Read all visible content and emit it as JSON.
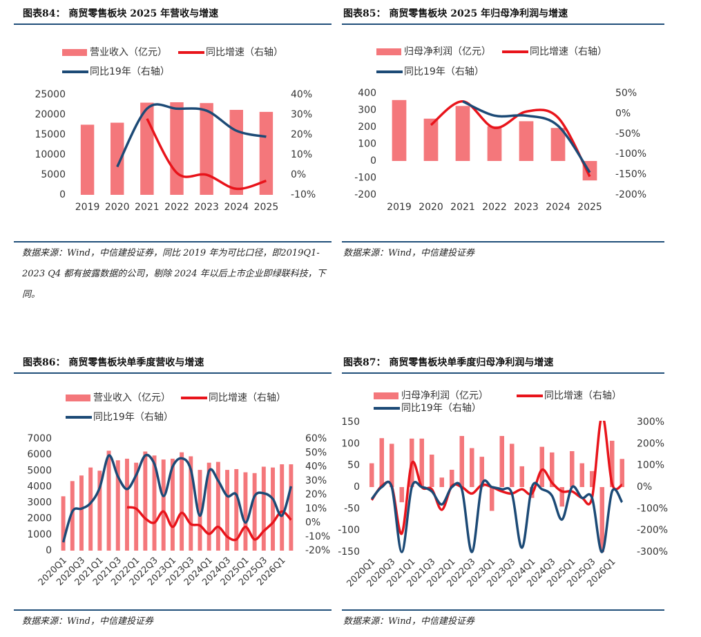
{
  "chart_data": [
    {
      "type": "bar-line",
      "title": "图表84：  商贸零售板块 2025 年营收与增速",
      "note": "数据来源：Wind，中信建投证券，同比 2019 年为可比口径，即2019Q1-2023 Q4 都有披露数据的公司，剔除 2024 年以后上市企业即绿联科技，下同。",
      "categories": [
        "2019",
        "2020",
        "2021",
        "2022",
        "2023",
        "2024",
        "2025"
      ],
      "series": [
        {
          "name": "营业收入（亿元）",
          "type": "bar",
          "color": "#f4777b",
          "values": [
            17500,
            18000,
            23000,
            23100,
            22900,
            21200,
            20700
          ]
        },
        {
          "name": "同比增速（右轴）",
          "type": "line",
          "axis": "y2",
          "color": "#e8141b",
          "values": [
            null,
            null,
            28,
            1,
            0,
            -7,
            -3
          ]
        },
        {
          "name": "同比19年（右轴）",
          "type": "line",
          "axis": "y2",
          "color": "#1c4a76",
          "values": [
            null,
            4,
            33,
            33,
            32,
            22,
            19
          ]
        }
      ],
      "ylim": [
        0,
        25000
      ],
      "yticks": [
        0,
        5000,
        10000,
        15000,
        20000,
        25000
      ],
      "y2lim": [
        -10,
        40
      ],
      "y2ticks": [
        {
          "value": -10,
          "label": "-10%"
        },
        {
          "value": 0,
          "label": "0%"
        },
        {
          "value": 10,
          "label": "10%"
        },
        {
          "value": 20,
          "label": "20%"
        },
        {
          "value": 30,
          "label": "30%"
        },
        {
          "value": 40,
          "label": "40%"
        }
      ]
    },
    {
      "type": "bar-line",
      "title": "图表85：  商贸零售板块 2025 年归母净利润与增速",
      "note": "数据来源：Wind，中信建投证券",
      "categories": [
        "2019",
        "2020",
        "2021",
        "2022",
        "2023",
        "2024",
        "2025"
      ],
      "series": [
        {
          "name": "归母净利润（亿元）",
          "type": "bar",
          "color": "#f4777b",
          "values": [
            360,
            250,
            325,
            205,
            235,
            195,
            -115
          ]
        },
        {
          "name": "同比增速（右轴）",
          "type": "line",
          "axis": "y2",
          "color": "#e8141b",
          "values": [
            null,
            -28,
            30,
            -35,
            5,
            -10,
            -155
          ]
        },
        {
          "name": "同比19年（右轴）",
          "type": "line",
          "axis": "y2",
          "color": "#1c4a76",
          "values": [
            null,
            null,
            30,
            -5,
            -5,
            -30,
            -145
          ]
        }
      ],
      "ylim": [
        -200,
        400
      ],
      "yticks": [
        -200,
        -100,
        0,
        100,
        200,
        300,
        400
      ],
      "y2lim": [
        -200,
        50
      ],
      "y2ticks": [
        {
          "value": -200,
          "label": "-200%"
        },
        {
          "value": -150,
          "label": "-150%"
        },
        {
          "value": -100,
          "label": "-100%"
        },
        {
          "value": -50,
          "label": "-50%"
        },
        {
          "value": 0,
          "label": "0%"
        },
        {
          "value": 50,
          "label": "50%"
        }
      ]
    },
    {
      "type": "bar-line",
      "title": "图表86：  商贸零售板块单季度营收与增速",
      "note": "数据来源：Wind，中信建投证券",
      "categories": [
        "2020Q1",
        null,
        "2020Q3",
        null,
        "2021Q1",
        null,
        "2021Q3",
        null,
        "2022Q1",
        null,
        "2022Q3",
        null,
        "2023Q1",
        null,
        "2023Q3",
        null,
        "2024Q1",
        null,
        "2024Q3",
        null,
        "2025Q1",
        null,
        "2025Q3",
        null,
        "2026Q1",
        null
      ],
      "series": [
        {
          "name": "营业收入（亿元）",
          "type": "bar",
          "color": "#f4777b",
          "values": [
            3400,
            4350,
            4700,
            5200,
            5000,
            6250,
            5650,
            5750,
            5500,
            6200,
            5950,
            5700,
            5750,
            6150,
            5900,
            5050,
            5500,
            5550,
            5050,
            5100,
            4900,
            4850,
            5250,
            5200,
            5400,
            5400
          ]
        },
        {
          "name": "同比增速（右轴）",
          "type": "line",
          "axis": "y2",
          "color": "#e8141b",
          "values": [
            null,
            null,
            null,
            null,
            null,
            null,
            null,
            11,
            10,
            3,
            0,
            8,
            -3,
            7,
            -1,
            -2,
            -8,
            -3,
            -10,
            -12,
            -3,
            -12,
            -6,
            0,
            8,
            2
          ]
        },
        {
          "name": "同比19年（右轴）",
          "type": "line",
          "axis": "y2",
          "color": "#1c4a76",
          "values": [
            -14,
            8,
            10,
            14,
            25,
            48,
            33,
            24,
            34,
            48,
            42,
            19,
            40,
            46,
            38,
            5,
            37,
            30,
            19,
            20,
            0,
            19,
            21,
            17,
            5,
            26
          ]
        }
      ],
      "ylim": [
        0,
        7000
      ],
      "yticks": [
        0,
        1000,
        2000,
        3000,
        4000,
        5000,
        6000,
        7000
      ],
      "y2lim": [
        -20,
        60
      ],
      "y2ticks": [
        {
          "value": -20,
          "label": "-20%"
        },
        {
          "value": -10,
          "label": "-10%"
        },
        {
          "value": 0,
          "label": "0%"
        },
        {
          "value": 10,
          "label": "10%"
        },
        {
          "value": 20,
          "label": "20%"
        },
        {
          "value": 30,
          "label": "30%"
        },
        {
          "value": 40,
          "label": "40%"
        },
        {
          "value": 50,
          "label": "50%"
        },
        {
          "value": 60,
          "label": "60%"
        }
      ]
    },
    {
      "type": "bar-line",
      "title": "图表87：  商贸零售板块单季度归母净利润与增速",
      "note": "数据来源：Wind，中信建投证券",
      "categories": [
        "2020Q1",
        null,
        "2020Q3",
        null,
        "2021Q1",
        null,
        "2021Q3",
        null,
        "2022Q1",
        null,
        "2022Q3",
        null,
        "2023Q1",
        null,
        "2023Q3",
        null,
        "2024Q1",
        null,
        "2024Q3",
        null,
        "2025Q1",
        null,
        "2025Q3",
        null,
        "2026Q1",
        null
      ],
      "series": [
        {
          "name": "归母净利润（亿元）",
          "type": "bar",
          "color": "#f4777b",
          "values": [
            55,
            113,
            100,
            -35,
            112,
            112,
            75,
            22,
            40,
            118,
            90,
            70,
            -55,
            118,
            100,
            48,
            -25,
            93,
            80,
            -45,
            83,
            55,
            37,
            -150,
            107,
            65
          ]
        },
        {
          "name": "同比增速（右轴）",
          "type": "line",
          "axis": "y2",
          "color": "#e8141b",
          "values": [
            -60,
            5,
            5,
            -215,
            110,
            0,
            -10,
            -105,
            5,
            0,
            -30,
            10,
            0,
            -20,
            -30,
            -10,
            -30,
            80,
            20,
            -20,
            -20,
            -50,
            -50,
            330,
            15,
            10
          ]
        },
        {
          "name": "同比19年（右轴）",
          "type": "line",
          "axis": "y2",
          "color": "#1c4a76",
          "values": [
            -55,
            0,
            0,
            -300,
            0,
            0,
            -20,
            -80,
            0,
            -10,
            -300,
            10,
            0,
            -10,
            -30,
            -280,
            0,
            -10,
            -40,
            -150,
            0,
            -50,
            -50,
            -300,
            -20,
            -70
          ]
        }
      ],
      "ylim": [
        -150,
        150
      ],
      "yticks": [
        -150,
        -100,
        -50,
        0,
        50,
        100,
        150
      ],
      "y2lim": [
        -300,
        300
      ],
      "y2ticks": [
        {
          "value": -300,
          "label": "-300%"
        },
        {
          "value": -200,
          "label": "-200%"
        },
        {
          "value": -100,
          "label": "-100%"
        },
        {
          "value": 0,
          "label": "0%"
        },
        {
          "value": 100,
          "label": "100%"
        },
        {
          "value": 200,
          "label": "200%"
        },
        {
          "value": 300,
          "label": "300%"
        }
      ]
    }
  ]
}
